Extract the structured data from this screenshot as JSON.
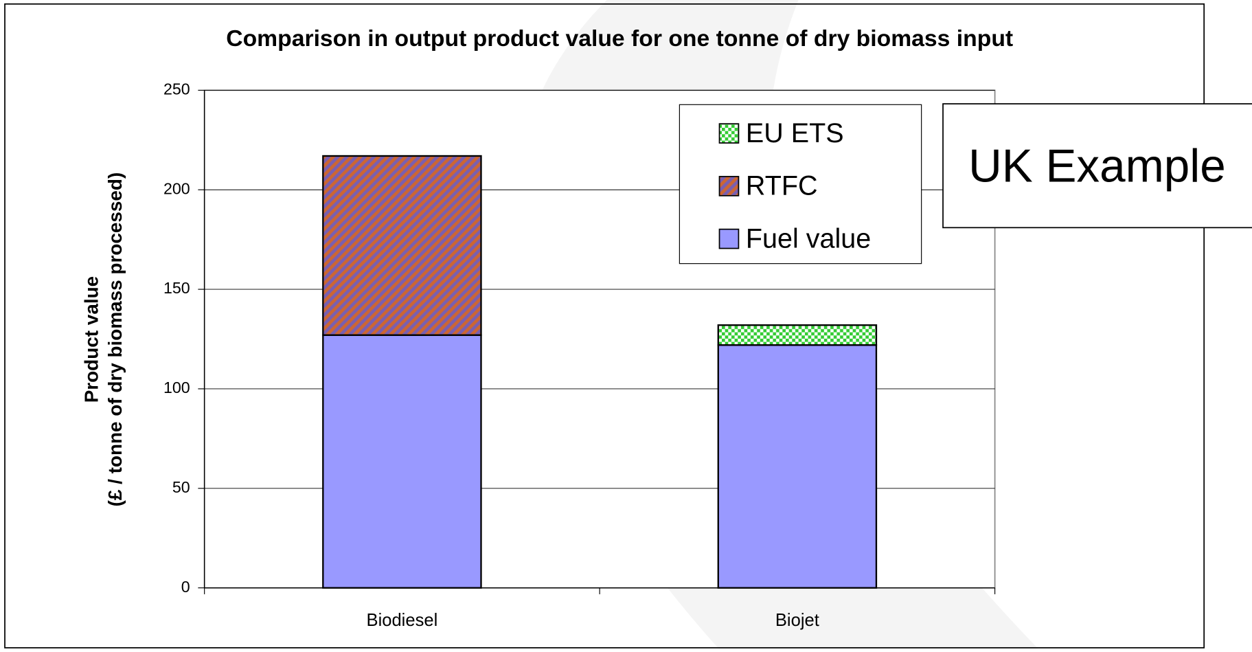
{
  "chart_data": {
    "type": "bar",
    "stacked": true,
    "title": "Comparison in output product value for one tonne of dry biomass input",
    "ylabel": [
      "Product value",
      "(£ / tonne of dry biomass processed)"
    ],
    "categories": [
      "Biodiesel",
      "Biojet"
    ],
    "series": [
      {
        "name": "Fuel value",
        "color": "#9999ff",
        "pattern": "solid",
        "values": [
          127,
          122
        ]
      },
      {
        "name": "RTFC",
        "color": "#cc6633",
        "pattern": "diagonal",
        "values": [
          90,
          0
        ]
      },
      {
        "name": "EU ETS",
        "color": "#33cc33",
        "pattern": "checker",
        "values": [
          0,
          10
        ]
      }
    ],
    "ylim": [
      0,
      250
    ],
    "yticks": [
      0,
      50,
      100,
      150,
      200,
      250
    ],
    "grid": true,
    "legend": "upper right",
    "annotation": "UK Example"
  }
}
